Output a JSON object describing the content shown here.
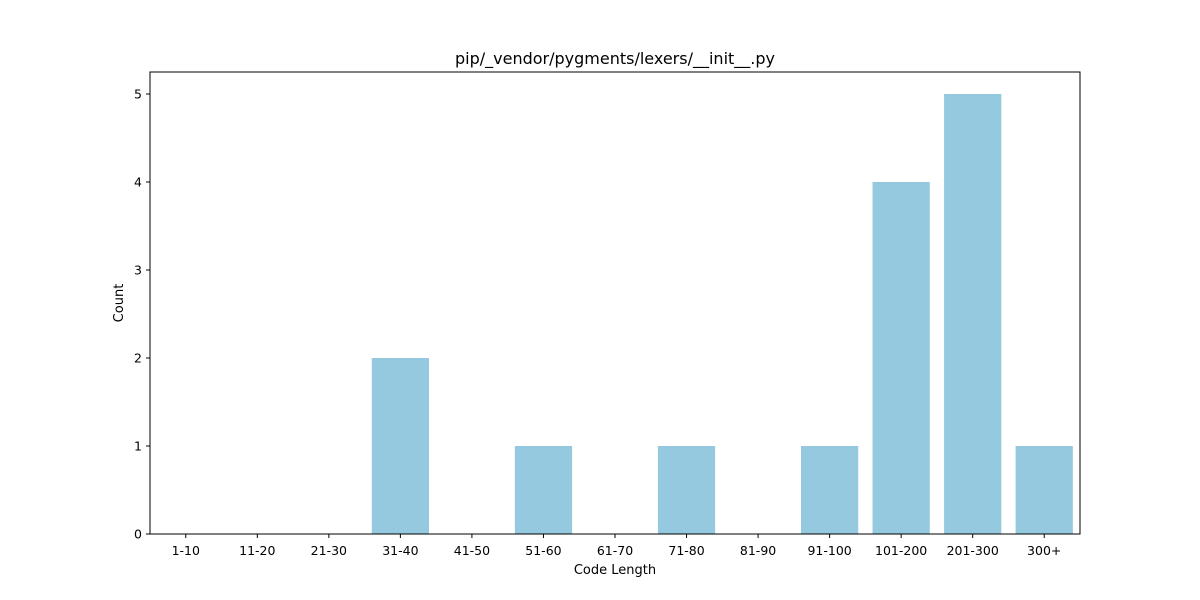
{
  "chart_data": {
    "type": "bar",
    "title": "pip/_vendor/pygments/lexers/__init__.py",
    "xlabel": "Code Length",
    "ylabel": "Count",
    "categories": [
      "1-10",
      "11-20",
      "21-30",
      "31-40",
      "41-50",
      "51-60",
      "61-70",
      "71-80",
      "81-90",
      "91-100",
      "101-200",
      "201-300",
      "300+"
    ],
    "values": [
      0,
      0,
      0,
      2,
      0,
      1,
      0,
      1,
      0,
      1,
      4,
      5,
      1
    ],
    "ylim": [
      0,
      5.25
    ],
    "yticks": [
      0,
      1,
      2,
      3,
      4,
      5
    ],
    "grid": false,
    "bar_color": "#95c9df"
  }
}
